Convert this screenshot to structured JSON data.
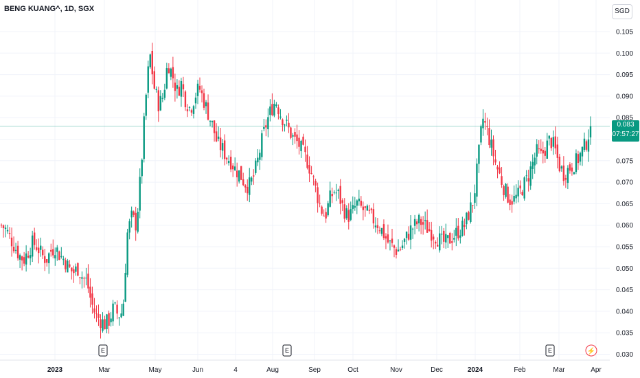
{
  "header": {
    "symbol_title": "BENG KUANG^, 1D, SGX",
    "currency": "SGD"
  },
  "price_tag": {
    "price": "0.083",
    "countdown": "07:57:27"
  },
  "colors": {
    "up": "#089981",
    "down": "#f23645",
    "price_line": "#089981",
    "grid": "#f0f3fa"
  },
  "events": [
    {
      "label": "E",
      "type": "earnings",
      "date": "Mar"
    },
    {
      "label": "E",
      "type": "earnings",
      "date": "Aug"
    },
    {
      "label": "E",
      "type": "earnings",
      "date": "Mar"
    },
    {
      "label": "⚡",
      "type": "split",
      "date": "Apr"
    }
  ],
  "chart_data": {
    "type": "candlestick",
    "title": "BENG KUANG^, 1D, SGX",
    "y_ticks": [
      "0.105",
      "0.100",
      "0.095",
      "0.090",
      "0.085",
      "0.080",
      "0.075",
      "0.070",
      "0.065",
      "0.060",
      "0.055",
      "0.050",
      "0.045",
      "0.040",
      "0.035",
      "0.030"
    ],
    "ylim": [
      0.03,
      0.107
    ],
    "x_ticks": [
      {
        "label": "2023",
        "bold": true
      },
      {
        "label": "Mar",
        "bold": false
      },
      {
        "label": "May",
        "bold": false
      },
      {
        "label": "Jun",
        "bold": false
      },
      {
        "label": "4",
        "bold": false
      },
      {
        "label": "Aug",
        "bold": false
      },
      {
        "label": "Sep",
        "bold": false
      },
      {
        "label": "Oct",
        "bold": false
      },
      {
        "label": "Nov",
        "bold": false
      },
      {
        "label": "Dec",
        "bold": false
      },
      {
        "label": "2024",
        "bold": true
      },
      {
        "label": "Feb",
        "bold": false
      },
      {
        "label": "Mar",
        "bold": false
      },
      {
        "label": "Apr",
        "bold": false
      }
    ],
    "last_price": 0.083,
    "close_path": [
      0.06,
      0.059,
      0.057,
      0.055,
      0.053,
      0.052,
      0.054,
      0.056,
      0.055,
      0.053,
      0.052,
      0.054,
      0.055,
      0.053,
      0.052,
      0.05,
      0.049,
      0.05,
      0.048,
      0.047,
      0.042,
      0.039,
      0.038,
      0.037,
      0.038,
      0.041,
      0.039,
      0.04,
      0.058,
      0.062,
      0.06,
      0.072,
      0.088,
      0.1,
      0.092,
      0.088,
      0.09,
      0.098,
      0.095,
      0.091,
      0.093,
      0.089,
      0.087,
      0.09,
      0.092,
      0.089,
      0.086,
      0.083,
      0.079,
      0.078,
      0.076,
      0.075,
      0.073,
      0.072,
      0.07,
      0.069,
      0.071,
      0.075,
      0.08,
      0.084,
      0.087,
      0.089,
      0.086,
      0.084,
      0.082,
      0.08,
      0.079,
      0.077,
      0.075,
      0.072,
      0.068,
      0.064,
      0.062,
      0.066,
      0.068,
      0.067,
      0.064,
      0.062,
      0.063,
      0.065,
      0.064,
      0.063,
      0.062,
      0.061,
      0.06,
      0.058,
      0.056,
      0.055,
      0.054,
      0.055,
      0.057,
      0.059,
      0.06,
      0.061,
      0.06,
      0.059,
      0.058,
      0.057,
      0.056,
      0.056,
      0.057,
      0.058,
      0.059,
      0.06,
      0.063,
      0.066,
      0.075,
      0.085,
      0.082,
      0.078,
      0.074,
      0.071,
      0.068,
      0.066,
      0.066,
      0.067,
      0.069,
      0.071,
      0.074,
      0.077,
      0.076,
      0.078,
      0.08,
      0.078,
      0.074,
      0.072,
      0.073,
      0.074,
      0.075,
      0.077,
      0.079,
      0.083
    ]
  }
}
